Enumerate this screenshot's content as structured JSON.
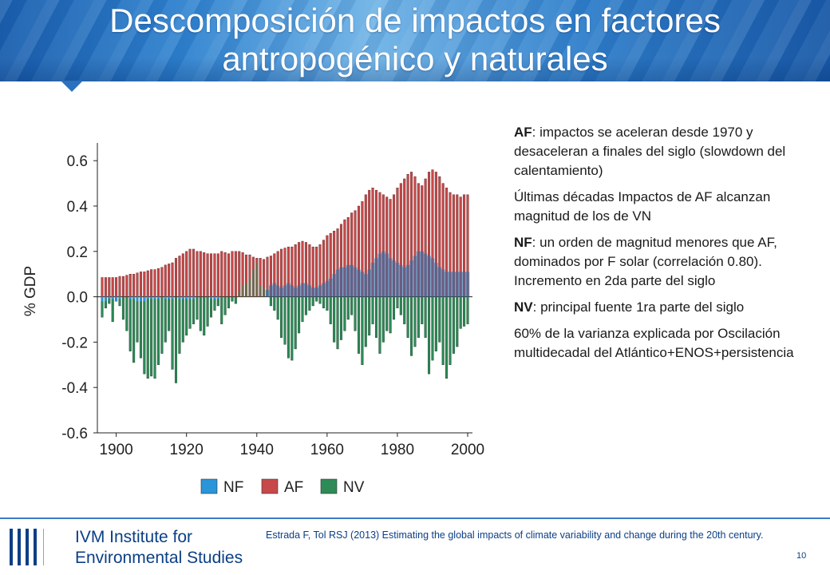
{
  "slide": {
    "title_line1": "Descomposición de impactos en factores",
    "title_line2": "antropogénico y naturales",
    "page_number": "10"
  },
  "bullets": [
    {
      "bold": "AF",
      "text": ": impactos se aceleran desde 1970 y desaceleran a finales del siglo (slowdown del calentamiento)"
    },
    {
      "bold": "",
      "text": "Últimas décadas Impactos de AF alcanzan magnitud de los de VN"
    },
    {
      "bold": "NF",
      "text": ": un orden de magnitud menores que AF, dominados por F solar (correlación 0.80). Incremento en 2da parte del siglo"
    },
    {
      "bold": "NV",
      "text": ": principal fuente 1ra parte del siglo"
    },
    {
      "bold": "",
      "text": "60% de la varianza explicada por Oscilación multidecadal del Atlántico+ENOS+persistencia"
    }
  ],
  "footer": {
    "logo_line1": "IVM Institute for",
    "logo_line2": "Environmental Studies",
    "reference": "Estrada F, Tol RSJ (2013) Estimating the global impacts of climate variability and change during the 20th century.",
    "accent": "#0b3f86"
  },
  "chart_data": {
    "type": "bar",
    "ylabel": "% GDP",
    "ylim": [
      -0.6,
      0.65
    ],
    "yticks": [
      "0.6",
      "0.4",
      "0.2",
      "0.0",
      "-0.2",
      "-0.4",
      "-0.6"
    ],
    "ytick_values": [
      0.6,
      0.4,
      0.2,
      0.0,
      -0.2,
      -0.4,
      -0.6
    ],
    "xticks": [
      "1900",
      "1920",
      "1940",
      "1960",
      "1980",
      "2000"
    ],
    "xtick_values": [
      1900,
      1920,
      1940,
      1960,
      1980,
      2000
    ],
    "x_start": 1896,
    "x_end": 2000,
    "legend_position": "bottom",
    "series": [
      {
        "name": "NF",
        "color": "#2a95d8",
        "values": [
          -0.02,
          -0.02,
          -0.01,
          -0.01,
          -0.02,
          -0.01,
          0.0,
          0.0,
          -0.01,
          -0.01,
          -0.02,
          -0.02,
          -0.02,
          -0.01,
          -0.01,
          -0.01,
          -0.01,
          0.0,
          -0.01,
          -0.01,
          -0.01,
          0.0,
          -0.01,
          -0.01,
          -0.01,
          -0.01,
          -0.01,
          0.0,
          0.0,
          0.0,
          0.0,
          -0.01,
          -0.01,
          -0.01,
          0.0,
          0.0,
          0.0,
          0.0,
          0.0,
          0.0,
          0.0,
          0.0,
          0.0,
          0.0,
          0.0,
          0.0,
          0.0,
          0.0,
          0.0,
          0.0,
          0.0,
          0.0,
          0.0,
          0.0,
          0.0,
          0.0,
          0.0,
          0.0,
          0.0,
          0.0,
          0.0,
          0.0,
          0.0,
          0.0,
          0.0,
          0.0,
          0.0,
          0.0,
          0.0,
          0.0,
          0.0,
          0.0,
          0.0,
          0.0,
          0.0,
          0.0,
          0.0,
          0.0,
          0.0,
          0.0,
          0.0,
          0.0,
          0.0,
          0.0,
          0.0,
          0.0,
          0.0,
          0.0,
          0.0,
          0.0,
          0.0,
          0.0,
          0.0,
          0.0,
          0.0,
          0.0,
          0.0,
          0.0,
          0.0,
          0.0,
          0.0,
          0.0,
          0.0,
          0.0,
          0.0
        ]
      },
      {
        "name": "AF",
        "color": "#c8494a",
        "values": [
          0.085,
          0.085,
          0.085,
          0.085,
          0.085,
          0.09,
          0.09,
          0.095,
          0.1,
          0.1,
          0.105,
          0.11,
          0.11,
          0.115,
          0.12,
          0.12,
          0.125,
          0.13,
          0.14,
          0.145,
          0.15,
          0.17,
          0.18,
          0.19,
          0.2,
          0.21,
          0.21,
          0.2,
          0.2,
          0.195,
          0.19,
          0.19,
          0.19,
          0.19,
          0.2,
          0.195,
          0.19,
          0.2,
          0.2,
          0.2,
          0.195,
          0.185,
          0.185,
          0.175,
          0.17,
          0.17,
          0.165,
          0.175,
          0.18,
          0.19,
          0.2,
          0.21,
          0.215,
          0.22,
          0.22,
          0.23,
          0.24,
          0.245,
          0.24,
          0.23,
          0.22,
          0.22,
          0.23,
          0.25,
          0.27,
          0.28,
          0.29,
          0.3,
          0.32,
          0.34,
          0.35,
          0.37,
          0.38,
          0.4,
          0.42,
          0.45,
          0.47,
          0.48,
          0.47,
          0.46,
          0.45,
          0.44,
          0.43,
          0.45,
          0.48,
          0.5,
          0.52,
          0.54,
          0.55,
          0.53,
          0.5,
          0.49,
          0.52,
          0.55,
          0.56,
          0.55,
          0.53,
          0.5,
          0.48,
          0.46,
          0.45,
          0.45,
          0.44,
          0.45,
          0.45
        ]
      },
      {
        "name": "NV",
        "color": "#2e8b57",
        "values": [
          -0.09,
          -0.05,
          -0.03,
          -0.11,
          -0.02,
          -0.04,
          -0.1,
          -0.15,
          -0.24,
          -0.29,
          -0.2,
          -0.27,
          -0.34,
          -0.36,
          -0.35,
          -0.36,
          -0.3,
          -0.25,
          -0.2,
          -0.15,
          -0.32,
          -0.38,
          -0.25,
          -0.2,
          -0.17,
          -0.14,
          -0.12,
          -0.1,
          -0.15,
          -0.17,
          -0.13,
          -0.09,
          -0.06,
          -0.04,
          -0.12,
          -0.08,
          -0.05,
          -0.02,
          -0.03,
          0.02,
          0.05,
          0.06,
          0.08,
          0.12,
          0.15,
          0.05,
          0.04,
          0.03,
          -0.04,
          -0.06,
          -0.1,
          -0.18,
          -0.21,
          -0.27,
          -0.28,
          -0.23,
          -0.16,
          -0.11,
          -0.08,
          -0.06,
          -0.04,
          -0.02,
          -0.03,
          -0.05,
          -0.06,
          -0.12,
          -0.2,
          -0.23,
          -0.19,
          -0.15,
          -0.1,
          -0.08,
          -0.15,
          -0.25,
          -0.3,
          -0.22,
          -0.17,
          -0.12,
          -0.18,
          -0.25,
          -0.2,
          -0.15,
          -0.16,
          -0.1,
          -0.05,
          -0.08,
          -0.12,
          -0.18,
          -0.26,
          -0.22,
          -0.18,
          -0.12,
          -0.18,
          -0.34,
          -0.28,
          -0.24,
          -0.2,
          -0.3,
          -0.36,
          -0.3,
          -0.25,
          -0.22,
          -0.14,
          -0.13,
          -0.12
        ]
      }
    ],
    "nf_overlay_values": [
      0.0,
      0.0,
      0.0,
      0.0,
      0.0,
      0.0,
      0.0,
      0.0,
      0.0,
      0.0,
      0.0,
      0.0,
      0.0,
      0.0,
      0.0,
      0.0,
      0.0,
      0.0,
      0.0,
      0.0,
      0.0,
      0.0,
      0.0,
      0.0,
      0.0,
      0.0,
      0.0,
      0.0,
      0.0,
      0.0,
      0.0,
      0.0,
      0.0,
      0.0,
      0.0,
      0.0,
      0.0,
      0.0,
      0.0,
      0.0,
      0.0,
      0.0,
      0.0,
      0.0,
      0.0,
      0.0,
      0.0,
      0.03,
      0.05,
      0.06,
      0.05,
      0.04,
      0.05,
      0.06,
      0.05,
      0.04,
      0.05,
      0.06,
      0.06,
      0.05,
      0.04,
      0.04,
      0.05,
      0.06,
      0.07,
      0.08,
      0.1,
      0.12,
      0.13,
      0.13,
      0.14,
      0.14,
      0.13,
      0.12,
      0.11,
      0.1,
      0.12,
      0.15,
      0.17,
      0.19,
      0.2,
      0.19,
      0.17,
      0.16,
      0.15,
      0.14,
      0.13,
      0.14,
      0.16,
      0.18,
      0.2,
      0.2,
      0.19,
      0.18,
      0.17,
      0.15,
      0.13,
      0.12,
      0.11,
      0.11,
      0.11,
      0.11,
      0.11,
      0.11,
      0.11
    ]
  }
}
